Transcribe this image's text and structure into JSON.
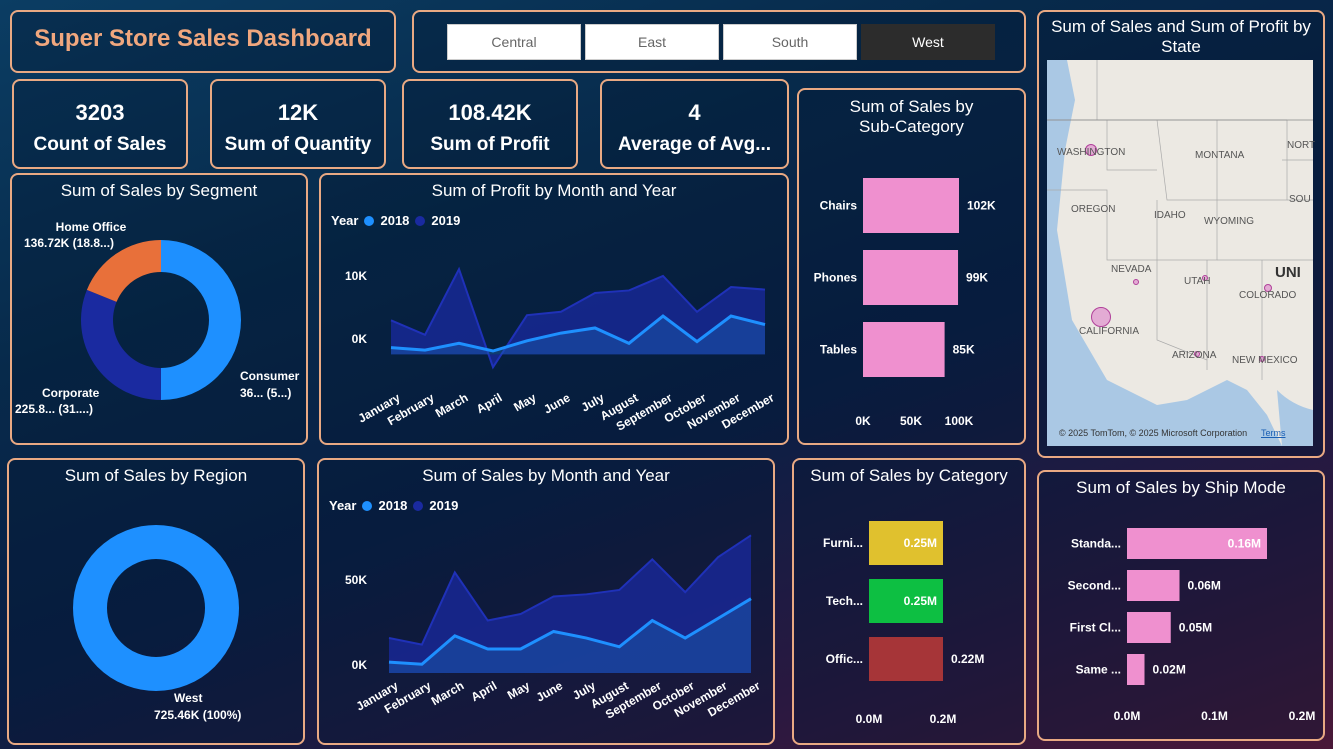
{
  "header": {
    "title": "Super Store Sales Dashboard"
  },
  "slicer": {
    "options": [
      "Central",
      "East",
      "South",
      "West"
    ],
    "selected": "West"
  },
  "kpis": [
    {
      "value": "3203",
      "label": "Count of Sales"
    },
    {
      "value": "12K",
      "label": "Sum of Quantity"
    },
    {
      "value": "108.42K",
      "label": "Sum of Profit"
    },
    {
      "value": "4",
      "label": "Average of Avg..."
    }
  ],
  "segment_chart": {
    "title": "Sum of Sales by Segment",
    "labels": [
      {
        "name": "Home Office",
        "value": "136.72K (18.8...)"
      },
      {
        "name": "Corporate",
        "value": "225.8... (31....)"
      },
      {
        "name": "Consumer",
        "value": "36... (5...)"
      }
    ]
  },
  "region_chart": {
    "title": "Sum of Sales by Region",
    "label_name": "West",
    "label_value": "725.46K (100%)"
  },
  "profit_month": {
    "title": "Sum of Profit by Month and Year",
    "legend_title": "Year",
    "legend": [
      "2018",
      "2019"
    ],
    "y_ticks": [
      "10K",
      "0K"
    ]
  },
  "sales_month": {
    "title": "Sum of Sales by Month and Year",
    "legend_title": "Year",
    "legend": [
      "2018",
      "2019"
    ],
    "y_ticks": [
      "50K",
      "0K"
    ]
  },
  "subcat_chart": {
    "title_line1": "Sum of Sales by",
    "title_line2": "Sub-Category"
  },
  "category_chart": {
    "title": "Sum of Sales by Category"
  },
  "shipmode_chart": {
    "title": "Sum of Sales by Ship Mode"
  },
  "map": {
    "title_line1": "Sum of Sales and Sum of Profit by",
    "title_line2": "State",
    "labels": [
      "WASHINGTON",
      "MONTANA",
      "NORT",
      "OREGON",
      "IDAHO",
      "WYOMING",
      "SOU",
      "NEVADA",
      "UTAH",
      "COLORADO",
      "UNI",
      "CALIFORNIA",
      "ARIZONA",
      "NEW MEXICO"
    ],
    "attribution": "© 2025 TomTom, © 2025 Microsoft Corporation",
    "terms": "Terms"
  },
  "colors": {
    "accent_border": "#e9a983",
    "series_2018": "#1e90ff",
    "series_2019": "#1a2aa0",
    "bar_pink": "#ef90cf",
    "furniture": "#e0c12e",
    "technology": "#0dbf42",
    "office": "#a63538"
  },
  "chart_data": [
    {
      "type": "pie",
      "title": "Sum of Sales by Segment",
      "categories": [
        "Consumer",
        "Corporate",
        "Home Office"
      ],
      "values": [
        362.9,
        225.8,
        136.72
      ],
      "colors": [
        "#1e90ff",
        "#1a2aa0",
        "#e8703a"
      ]
    },
    {
      "type": "pie",
      "title": "Sum of Sales by Region",
      "categories": [
        "West"
      ],
      "values": [
        725.46
      ],
      "colors": [
        "#1e90ff"
      ]
    },
    {
      "type": "area",
      "title": "Sum of Profit by Month and Year",
      "categories": [
        "January",
        "February",
        "March",
        "April",
        "May",
        "June",
        "July",
        "August",
        "September",
        "October",
        "November",
        "December"
      ],
      "series": [
        {
          "name": "2018",
          "values": [
            800,
            500,
            1300,
            400,
            1600,
            2500,
            3100,
            1300,
            4500,
            1500,
            4500,
            3500
          ]
        },
        {
          "name": "2019",
          "values": [
            4000,
            2300,
            10000,
            -1500,
            4600,
            5000,
            7200,
            7500,
            9200,
            5000,
            7900,
            7600
          ]
        }
      ],
      "ylim": [
        -3000,
        14000
      ]
    },
    {
      "type": "area",
      "title": "Sum of Sales by Month and Year",
      "categories": [
        "January",
        "February",
        "March",
        "April",
        "May",
        "June",
        "July",
        "August",
        "September",
        "October",
        "November",
        "December"
      ],
      "series": [
        {
          "name": "2018",
          "values": [
            5000,
            4000,
            17000,
            11000,
            11000,
            19000,
            16000,
            12000,
            24000,
            16000,
            25000,
            34000
          ]
        },
        {
          "name": "2019",
          "values": [
            16000,
            13000,
            46000,
            24000,
            27000,
            35000,
            36000,
            38000,
            52000,
            37000,
            53000,
            63000
          ]
        }
      ],
      "ylim": [
        0,
        70000
      ]
    },
    {
      "type": "bar",
      "title": "Sum of Sales by Sub-Category",
      "categories": [
        "Chairs",
        "Phones",
        "Tables"
      ],
      "values": [
        102,
        99,
        85
      ],
      "data_labels": [
        "102K",
        "99K",
        "85K"
      ],
      "x_ticks": [
        "0K",
        "50K",
        "100K"
      ],
      "xlim": [
        0,
        100
      ]
    },
    {
      "type": "bar",
      "title": "Sum of Sales by Category",
      "categories": [
        "Furni...",
        "Tech...",
        "Offic..."
      ],
      "values": [
        0.25,
        0.25,
        0.22
      ],
      "data_labels": [
        "0.25M",
        "0.25M",
        "0.22M"
      ],
      "x_ticks": [
        "0.0M",
        "0.2M"
      ],
      "xlim": [
        0,
        0.2
      ]
    },
    {
      "type": "bar",
      "title": "Sum of Sales by Ship Mode",
      "categories": [
        "Standa...",
        "Second...",
        "First Cl...",
        "Same ..."
      ],
      "values": [
        0.16,
        0.06,
        0.05,
        0.02
      ],
      "data_labels": [
        "0.16M",
        "0.06M",
        "0.05M",
        "0.02M"
      ],
      "x_ticks": [
        "0.0M",
        "0.1M",
        "0.2M"
      ],
      "xlim": [
        0,
        0.2
      ]
    }
  ]
}
